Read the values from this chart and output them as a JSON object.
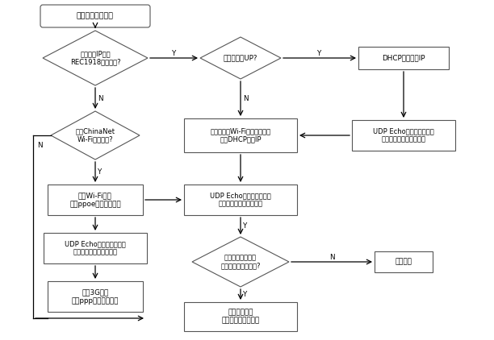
{
  "background_color": "#ffffff",
  "font_name": "Arial Unicode MS",
  "nodes": {
    "start": {
      "label": "多网络自适应接入"
    },
    "d1": {
      "label": "监控中心IP属于\nREC1918保留地址?"
    },
    "d2": {
      "label": "电信ChinaNet\nWi-Fi热点存在?"
    },
    "b1": {
      "label": "绑定Wi-Fi模块\n使用ppoe建立公网路由"
    },
    "b2": {
      "label": "UDP Echo目的地可达测试\n并计算到监控中心的延迟"
    },
    "b3": {
      "label": "绑定3G模块\n使用ppp建立公网路由"
    },
    "d3": {
      "label": "以太网接口UP?"
    },
    "b4": {
      "label": "扫描所有的Wi-Fi热点、逐个接\n入、DHCP获取IP"
    },
    "b5": {
      "label": "UDP Echo目的地可达测试\n并计算到监控中心的延迟"
    },
    "d4": {
      "label": "存在一条到达监控\n中心延迟最小的链路?"
    },
    "b6": {
      "label": "注册该链路并\n初始化视频传输参数"
    },
    "b7": {
      "label": "DHCP自动获取IP"
    },
    "b8": {
      "label": "UDP Echo目的地可达测试\n并计算到监控中心的延迟"
    },
    "b9": {
      "label": "告警输出"
    }
  },
  "label_Y": "Y",
  "label_N": "N"
}
